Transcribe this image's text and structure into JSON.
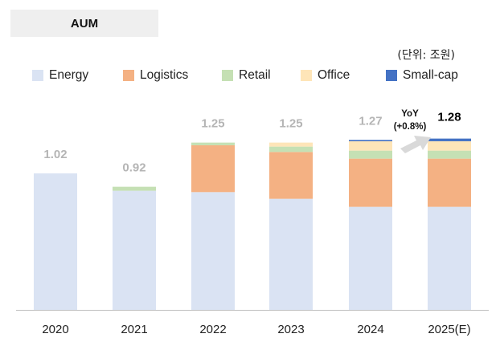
{
  "header": {
    "title": "AUM",
    "unit": "(단위: 조원)"
  },
  "chart_data": {
    "type": "bar",
    "stacked": true,
    "title": "AUM",
    "unit": "(단위: 조원)",
    "categories": [
      "2020",
      "2021",
      "2022",
      "2023",
      "2024",
      "2025(E)"
    ],
    "series": [
      {
        "name": "Energy",
        "color": "#dae3f3",
        "values": [
          1.02,
          0.89,
          0.88,
          0.83,
          0.77,
          0.77
        ]
      },
      {
        "name": "Logistics",
        "color": "#f4b183",
        "values": [
          0.0,
          0.0,
          0.35,
          0.35,
          0.36,
          0.36
        ]
      },
      {
        "name": "Retail",
        "color": "#c5e0b4",
        "values": [
          0.0,
          0.03,
          0.02,
          0.04,
          0.06,
          0.06
        ]
      },
      {
        "name": "Office",
        "color": "#fee5b8",
        "values": [
          0.0,
          0.0,
          0.0,
          0.03,
          0.07,
          0.07
        ]
      },
      {
        "name": "Small-cap",
        "color": "#4472c4",
        "values": [
          0.0,
          0.0,
          0.0,
          0.0,
          0.01,
          0.02
        ]
      }
    ],
    "totals": [
      "1.02",
      "0.92",
      "1.25",
      "1.25",
      "1.27",
      "1.28"
    ],
    "annotation": {
      "line1": "YoY",
      "line2": "(+0.8%)"
    },
    "ylim": [
      0,
      1.4
    ],
    "grid": false,
    "legend_position": "top"
  }
}
